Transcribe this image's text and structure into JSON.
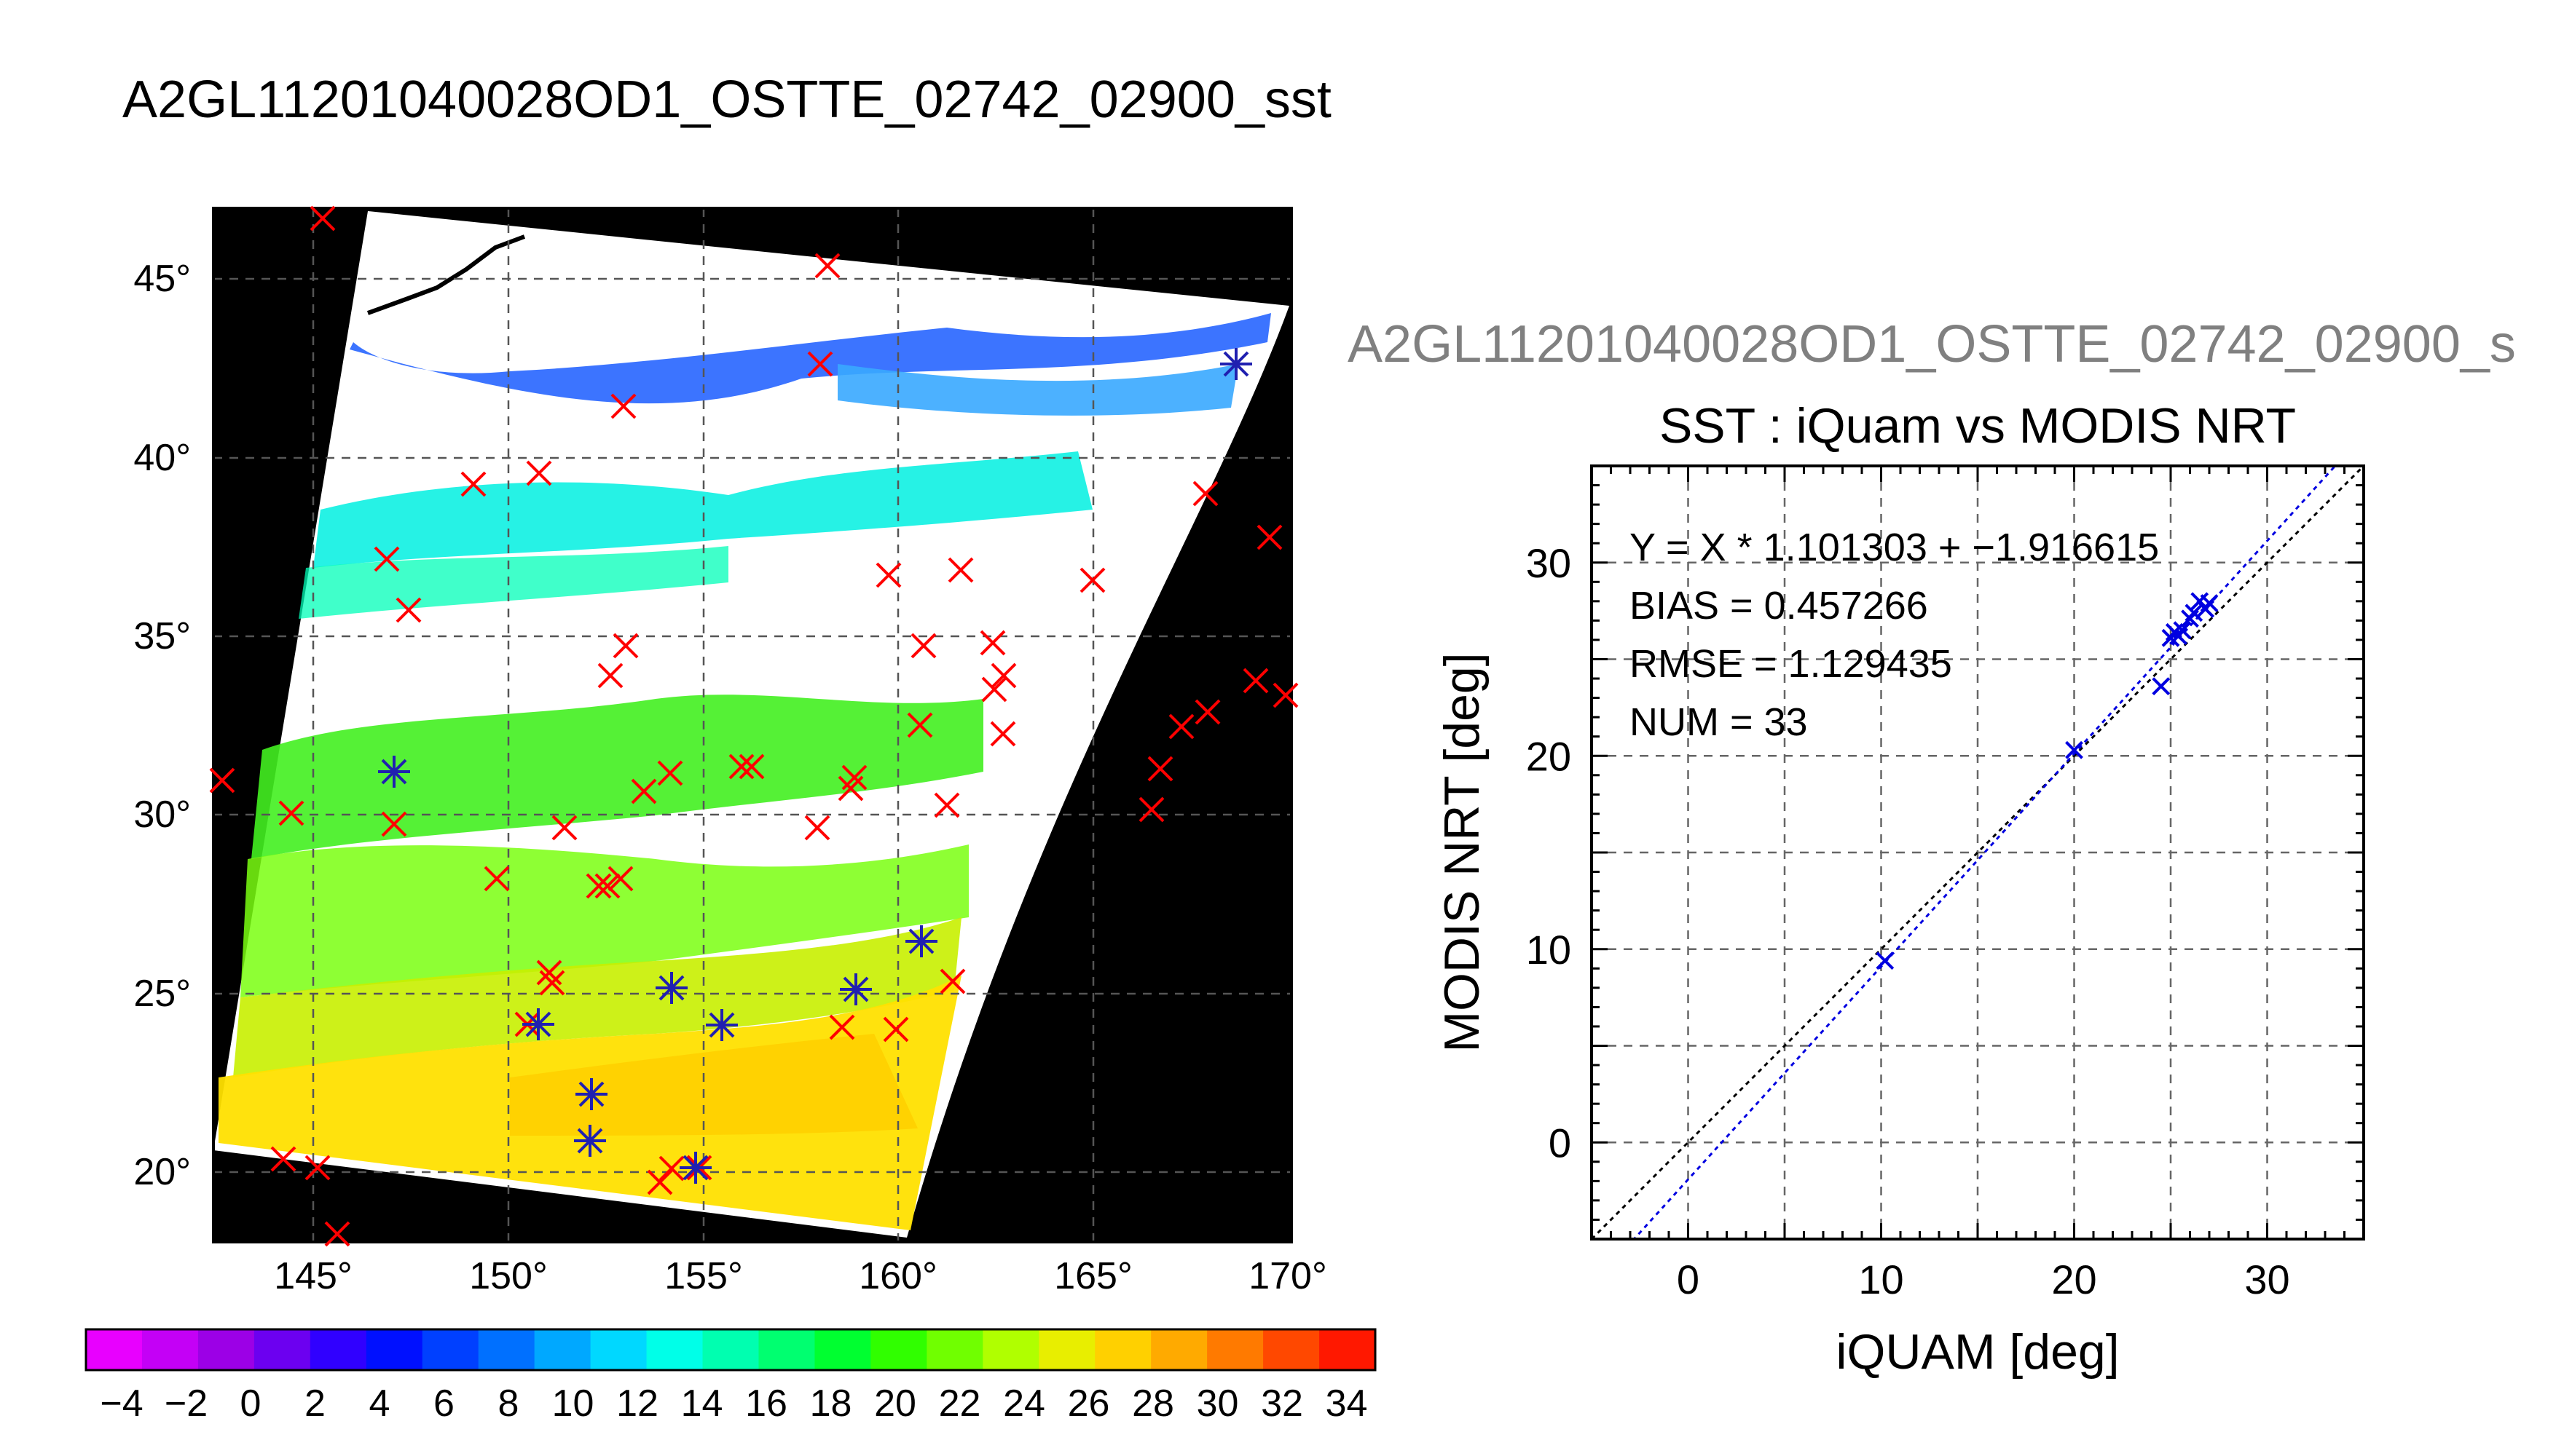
{
  "page_title": "A2GL11201040028OD1_OSTTE_02742_02900_sst",
  "map": {
    "lat_ticks": [
      "45°",
      "40°",
      "35°",
      "30°",
      "25°",
      "20°"
    ],
    "lon_ticks": [
      "145°",
      "150°",
      "155°",
      "160°",
      "165°",
      "170°"
    ],
    "colorbar_ticks": [
      "−4",
      "−2",
      "0",
      "2",
      "4",
      "6",
      "8",
      "10",
      "12",
      "14",
      "16",
      "18",
      "20",
      "22",
      "24",
      "26",
      "28",
      "30",
      "32",
      "34"
    ],
    "colorbar_colors": [
      "#e800ff",
      "#c400f6",
      "#9c00e6",
      "#6c00f0",
      "#3000ff",
      "#0010ff",
      "#0040ff",
      "#0070ff",
      "#00a8ff",
      "#00d8ff",
      "#00ffe8",
      "#00ffb0",
      "#00ff70",
      "#00ff30",
      "#30ff00",
      "#70ff00",
      "#b0ff00",
      "#e8ee00",
      "#ffd000",
      "#ffaa00",
      "#ff7a00",
      "#ff4800",
      "#ff1800"
    ]
  },
  "chart_data": {
    "type": "scatter",
    "subtitle": "A2GL11201040028OD1_OSTTE_02742_02900_s",
    "title": "SST : iQuam vs MODIS NRT",
    "xlabel": "iQUAM [deg]",
    "ylabel": "MODIS NRT [deg]",
    "xlim": [
      -5,
      35
    ],
    "ylim": [
      -5,
      35
    ],
    "xticks": [
      0,
      10,
      20,
      30
    ],
    "yticks": [
      0,
      10,
      20,
      30
    ],
    "grid": true,
    "stats": [
      "Y = X * 1.101303 + −1.916615",
      "BIAS = 0.457266",
      "RMSE = 1.129435",
      "NUM = 33"
    ],
    "fit": {
      "slope": 1.101303,
      "intercept": -1.916615
    },
    "points": [
      {
        "x": 10.2,
        "y": 9.4
      },
      {
        "x": 20.0,
        "y": 20.3
      },
      {
        "x": 24.5,
        "y": 23.6
      },
      {
        "x": 25.0,
        "y": 26.1
      },
      {
        "x": 25.2,
        "y": 26.4
      },
      {
        "x": 25.4,
        "y": 26.2
      },
      {
        "x": 25.6,
        "y": 26.5
      },
      {
        "x": 26.0,
        "y": 27.1
      },
      {
        "x": 26.2,
        "y": 27.4
      },
      {
        "x": 26.5,
        "y": 28.0
      },
      {
        "x": 26.8,
        "y": 27.6
      },
      {
        "x": 27.0,
        "y": 27.9
      }
    ],
    "colors": {
      "points": "#0000e0",
      "fit_line": "#0000e0",
      "identity_line": "#000000"
    }
  }
}
